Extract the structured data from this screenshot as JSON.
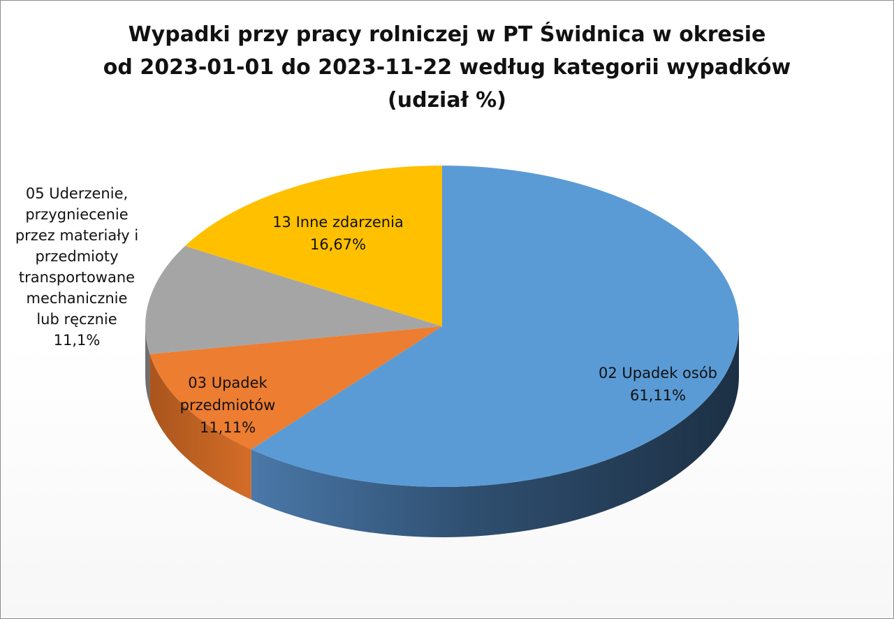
{
  "chart_data": {
    "type": "pie",
    "title_lines": [
      "Wypadki przy pracy rolniczej w PT Świdnica w okresie",
      "od 2023-01-01 do 2023-11-22 według kategorii wypadków",
      "(udział %)"
    ],
    "slices": [
      {
        "name": "02 Upadek osób",
        "value": 61.11,
        "color": "#5b9bd5",
        "label_lines": [
          "02 Upadek osób",
          "61,11%"
        ]
      },
      {
        "name": "03 Upadek przedmiotów",
        "value": 11.11,
        "color": "#ed7d31",
        "label_lines": [
          "03 Upadek",
          "przedmiotów",
          "11,11%"
        ]
      },
      {
        "name": "05 Uderzenie, przygniecenie przez materiały i przedmioty transportowane mechanicznie lub ręcznie",
        "value": 11.1,
        "color": "#a5a5a5",
        "label_lines": [
          "05 Uderzenie,",
          "przygniecenie",
          "przez materiały i",
          "przedmioty",
          "transportowane",
          "mechanicznie",
          "lub ręcznie",
          "11,1%"
        ]
      },
      {
        "name": "13 Inne zdarzenia",
        "value": 16.67,
        "color": "#ffc000",
        "label_lines": [
          "13 Inne zdarzenia",
          "16,67%"
        ]
      }
    ],
    "style": "3d-pie",
    "legend": "none"
  }
}
